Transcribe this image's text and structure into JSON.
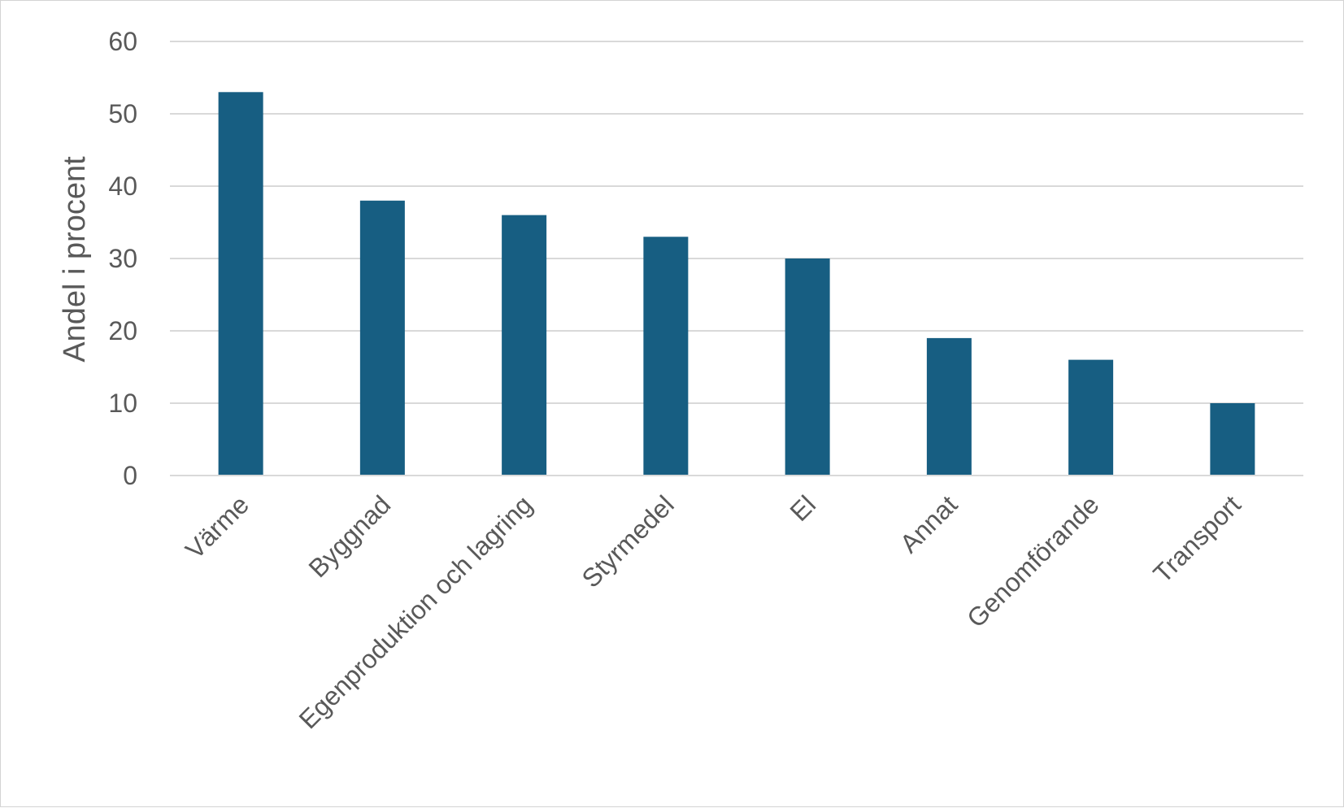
{
  "chart_data": {
    "type": "bar",
    "title": "",
    "xlabel": "",
    "ylabel": "Andel i procent",
    "categories": [
      "Värme",
      "Byggnad",
      "Egenproduktion och lagring",
      "Styrmedel",
      "El",
      "Annat",
      "Genomförande",
      "Transport"
    ],
    "values": [
      53,
      38,
      36,
      33,
      30,
      19,
      16,
      10
    ],
    "ylim": [
      0,
      60
    ],
    "yticks": [
      "0",
      "10",
      "20",
      "30",
      "40",
      "50",
      "60"
    ],
    "grid": "horizontal",
    "legend": "none",
    "colors": {
      "bar": "#175E82",
      "grid": "#d9d9d9",
      "axis": "#d9d9d9",
      "text": "#595959",
      "border": "#d4d4d4"
    }
  }
}
